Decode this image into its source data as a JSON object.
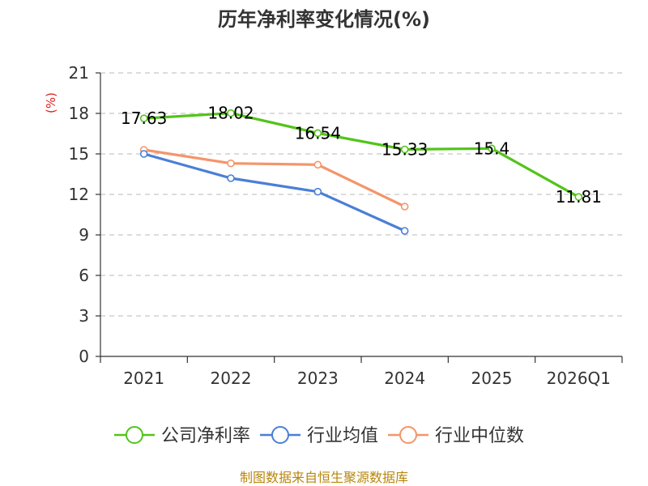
{
  "chart_data": {
    "type": "line",
    "title": "历年净利率变化情况(%)",
    "ylabel": "(%)",
    "xlabel": "",
    "categories": [
      "2021",
      "2022",
      "2023",
      "2024",
      "2025",
      "2026Q1"
    ],
    "ylim": [
      0,
      21
    ],
    "yticks": [
      0,
      3,
      6,
      9,
      12,
      15,
      18,
      21
    ],
    "grid": true,
    "legend_position": "bottom",
    "series": [
      {
        "name": "公司净利率",
        "color": "#52c41a",
        "values": [
          17.63,
          18.02,
          16.54,
          15.33,
          15.4,
          11.81
        ],
        "labels": [
          "17.63",
          "18.02",
          "16.54",
          "15.33",
          "15.4",
          "11.81"
        ]
      },
      {
        "name": "行业均值",
        "color": "#4a7fd6",
        "values": [
          15.0,
          13.2,
          12.2,
          9.3,
          null,
          null
        ],
        "labels": []
      },
      {
        "name": "行业中位数",
        "color": "#f4956a",
        "values": [
          15.3,
          14.3,
          14.2,
          11.1,
          null,
          null
        ],
        "labels": []
      }
    ]
  },
  "source": "制图数据来自恒生聚源数据库"
}
